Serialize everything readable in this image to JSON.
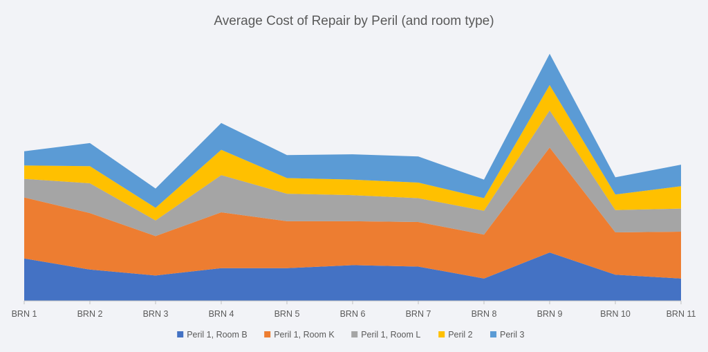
{
  "chart_data": {
    "type": "area",
    "stacked": true,
    "title": "Average Cost of Repair by Peril (and room type)",
    "xlabel": "",
    "ylabel": "",
    "gridlines": false,
    "legend_position": "bottom",
    "ylim": [
      0,
      330
    ],
    "categories": [
      "BRN 1",
      "BRN 2",
      "BRN 3",
      "BRN 4",
      "BRN 5",
      "BRN 6",
      "BRN 7",
      "BRN 8",
      "BRN 9",
      "BRN 10",
      "BRN 11"
    ],
    "series": [
      {
        "name": "Peril 1, Room B",
        "color": "#4472c4",
        "values": [
          57,
          42,
          34,
          44,
          44,
          48,
          46,
          30,
          65,
          35,
          30
        ]
      },
      {
        "name": "Peril 1, Room K",
        "color": "#ed7d31",
        "values": [
          82,
          76,
          53,
          75,
          63,
          59,
          60,
          59,
          141,
          57,
          63
        ]
      },
      {
        "name": "Peril 1, Room L",
        "color": "#a5a5a5",
        "values": [
          25,
          40,
          21,
          50,
          37,
          35,
          32,
          32,
          50,
          30,
          31
        ]
      },
      {
        "name": "Peril 2",
        "color": "#ffc000",
        "values": [
          18,
          23,
          17,
          34,
          21,
          21,
          21,
          17,
          34,
          21,
          30
        ]
      },
      {
        "name": "Peril 3",
        "color": "#5b9bd5",
        "values": [
          19,
          31,
          26,
          36,
          31,
          34,
          35,
          25,
          42,
          23,
          29
        ]
      }
    ]
  }
}
